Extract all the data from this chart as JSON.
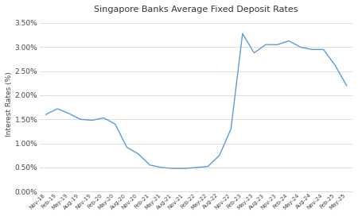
{
  "title": "Singapore Banks Average Fixed Deposit Rates",
  "ylabel": "Interest Rates (%)",
  "line_color": "#5b9bd5",
  "background_color": "#ffffff",
  "ylim": [
    0.0,
    0.0364
  ],
  "yticks": [
    0.0,
    0.005,
    0.01,
    0.015,
    0.02,
    0.025,
    0.03,
    0.035
  ],
  "ytick_labels": [
    "0.00%",
    "0.50%",
    "1.00%",
    "1.50%",
    "2.00%",
    "2.50%",
    "3.00%",
    "3.50%"
  ],
  "dates": [
    "Nov-18",
    "Feb-19",
    "May-19",
    "Aug-19",
    "Nov-19",
    "Feb-20",
    "May-20",
    "Aug-20",
    "Nov-20",
    "Feb-21",
    "May-21",
    "Aug-21",
    "Nov-21",
    "Feb-22",
    "May-22",
    "Aug-22",
    "Nov-22",
    "Feb-23",
    "May-23",
    "Aug-23",
    "Nov-23",
    "Feb-24",
    "May-24",
    "Aug-24",
    "Nov-24",
    "Feb-25",
    "May-25"
  ],
  "values": [
    0.016,
    0.0172,
    0.0162,
    0.015,
    0.0148,
    0.0153,
    0.014,
    0.0092,
    0.0078,
    0.0055,
    0.005,
    0.0048,
    0.0048,
    0.005,
    0.0052,
    0.0075,
    0.013,
    0.0328,
    0.0288,
    0.0305,
    0.0305,
    0.0313,
    0.03,
    0.0295,
    0.0295,
    0.0262,
    0.022
  ]
}
